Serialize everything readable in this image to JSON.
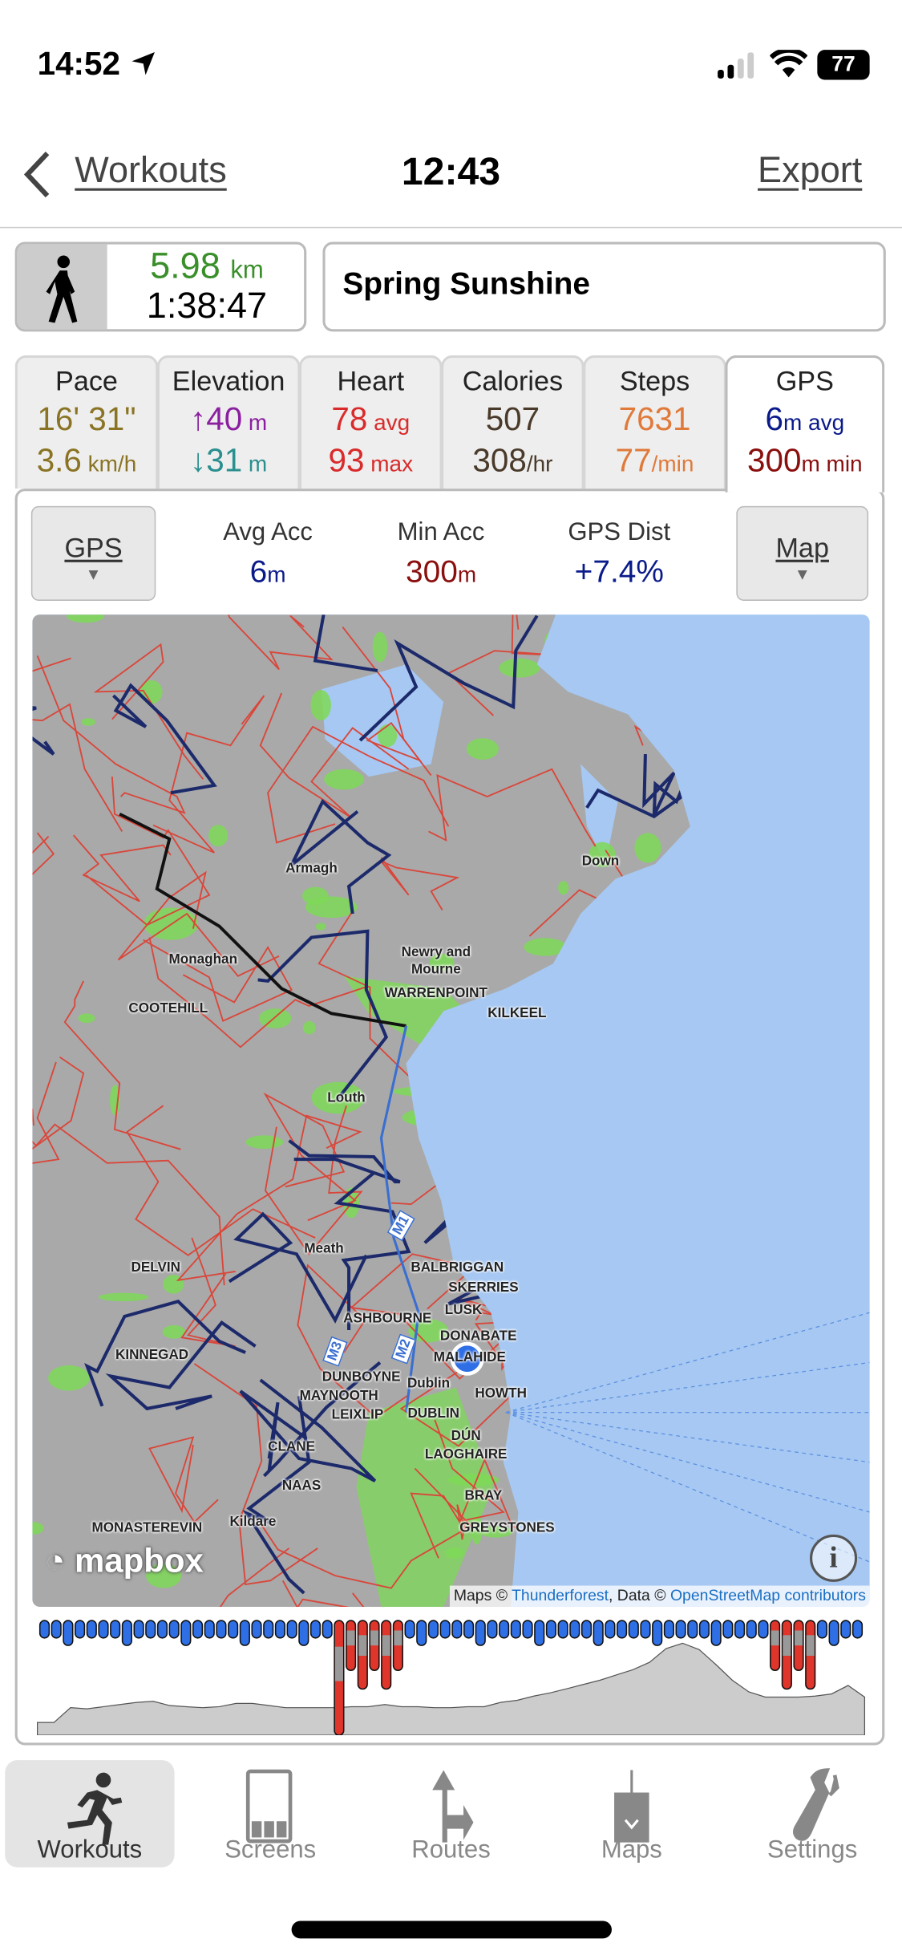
{
  "status_bar": {
    "time": "14:52",
    "battery": "77",
    "icons": [
      "location-arrow-icon",
      "cellular-signal-icon",
      "wifi-icon",
      "battery-icon"
    ]
  },
  "nav": {
    "back_label": "Workouts",
    "title": "12:43",
    "export_label": "Export"
  },
  "summary": {
    "activity_icon": "walking-icon",
    "distance": "5.98",
    "distance_unit": "km",
    "duration": "1:38:47",
    "name": "Spring Sunshine"
  },
  "tabs": [
    {
      "title": "Pace",
      "line1": "16' 31\"",
      "line1_unit": "",
      "line2": "3.6",
      "line2_unit": " km/h",
      "color1": "#8a7424",
      "color2": "#8a7424"
    },
    {
      "title": "Elevation",
      "line1": "↑40",
      "line1_unit": " m",
      "line2": "↓31",
      "line2_unit": " m",
      "color1": "#8a1fa0",
      "color2": "#2a8f8f"
    },
    {
      "title": "Heart",
      "line1": "78",
      "line1_unit": " avg",
      "line2": "93",
      "line2_unit": " max",
      "color1": "#d92b2b",
      "color2": "#d92b2b"
    },
    {
      "title": "Calories",
      "line1": "507",
      "line1_unit": "",
      "line2": "308",
      "line2_unit": "/hr",
      "color1": "#4a3a2a",
      "color2": "#4a3a2a"
    },
    {
      "title": "Steps",
      "line1": "7631",
      "line1_unit": "",
      "line2": "77",
      "line2_unit": "/min",
      "color1": "#e07a3a",
      "color2": "#e07a3a"
    },
    {
      "title": "GPS",
      "line1": "6",
      "line1_unit": "m avg",
      "line2": "300",
      "line2_unit": "m min",
      "color1": "#0a1a8a",
      "color2": "#8a0f0f"
    }
  ],
  "active_tab": "GPS",
  "gps_panel": {
    "left_button": "GPS",
    "right_button": "Map",
    "stats": [
      {
        "label": "Avg Acc",
        "value": "6",
        "unit": "m",
        "color": "#0a1a8a"
      },
      {
        "label": "Min Acc",
        "value": "300",
        "unit": "m",
        "color": "#8a0f0f"
      },
      {
        "label": "GPS Dist",
        "value": "+7.4%",
        "unit": "",
        "color": "#0a1a8a"
      }
    ]
  },
  "map": {
    "logo": "mapbox",
    "attribution_prefix": "Maps © ",
    "attribution_tiles": "Thunderforest",
    "attribution_mid": ", Data © ",
    "attribution_data": "OpenStreetMap contributors",
    "labels": [
      "Armagh",
      "Down",
      "Monaghan",
      "Newry and",
      "Mourne",
      "WARRENPOINT",
      "KILKEEL",
      "COOTEHILL",
      "Louth",
      "Meath",
      "DELVIN",
      "BALBRIGGAN",
      "SKERRIES",
      "ASHBOURNE",
      "LUSK",
      "DONABATE",
      "MALAHIDE",
      "KINNEGAD",
      "DUNBOYNE",
      "Dublin",
      "HOWTH",
      "MAYNOOTH",
      "LEIXLIP",
      "DUBLIN",
      "DÚN",
      "LAOGHAIRE",
      "CLANE",
      "NAAS",
      "BRAY",
      "GREYSTONES",
      "MONASTEREVIN",
      "Kildare"
    ],
    "road_shields": [
      "M1",
      "M3",
      "M2"
    ],
    "colors": {
      "land": "#a9a9a9",
      "sea": "#a6c8f2",
      "green": "#7ed957",
      "road": "#d9473b",
      "boundary": "#1c2a6b",
      "location": "#2f6fe6"
    }
  },
  "chart": {
    "elevation_profile": [
      10,
      10,
      38,
      36,
      40,
      44,
      48,
      50,
      42,
      40,
      38,
      40,
      46,
      46,
      42,
      38,
      38,
      38,
      38,
      40,
      40,
      44,
      40,
      40,
      38,
      38,
      40,
      40,
      48,
      52,
      60,
      66,
      74,
      82,
      90,
      100,
      110,
      124,
      150,
      160,
      148,
      120,
      90,
      68,
      58,
      58,
      58,
      60,
      64,
      80,
      58
    ],
    "gps_accuracy_bars": {
      "count": 70,
      "poor_indices": [
        25,
        26,
        27,
        28,
        29,
        30,
        62,
        63,
        64,
        65
      ],
      "worst_index": 25
    },
    "colors": {
      "good": "#2f6fe6",
      "medium": "#999999",
      "poor": "#e0352b",
      "profile": "#cccccc"
    }
  },
  "tabbar": [
    {
      "label": "Workouts",
      "icon": "running-icon",
      "active": true
    },
    {
      "label": "Screens",
      "icon": "screens-icon",
      "active": false
    },
    {
      "label": "Routes",
      "icon": "route-turn-icon",
      "active": false
    },
    {
      "label": "Maps",
      "icon": "map-download-icon",
      "active": false
    },
    {
      "label": "Settings",
      "icon": "wrench-icon",
      "active": false
    }
  ]
}
